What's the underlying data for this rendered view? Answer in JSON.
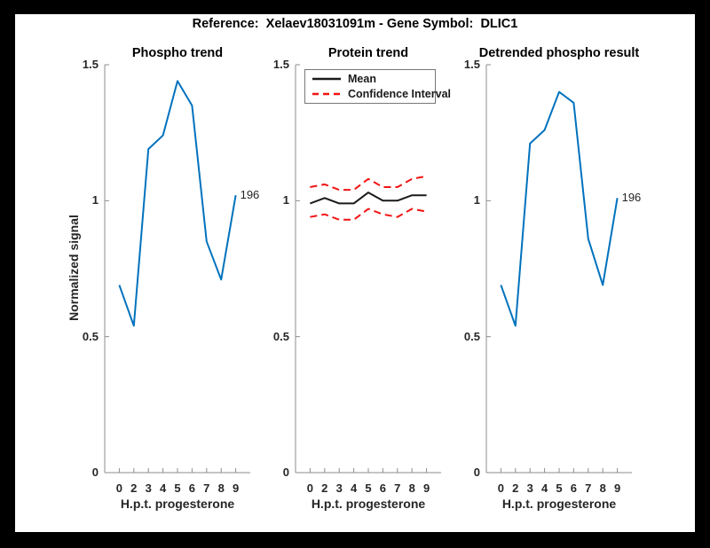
{
  "window": {
    "background": "#000000",
    "canvas": "#ffffff"
  },
  "header": {
    "title": "Reference:  Xelaev18031091m - Gene Symbol:  DLIC1"
  },
  "colors": {
    "blue": "#0072BD",
    "red": "#F21414",
    "black": "#1A1A1A",
    "axis_line": "#8C8C8C",
    "tick_text": "#262626"
  },
  "axes": {
    "xticklabels": [
      "0",
      "2",
      "3",
      "4",
      "5",
      "6",
      "7",
      "8",
      "9"
    ],
    "yticks": [
      0,
      0.5,
      1,
      1.5
    ],
    "yticklabels": [
      "0",
      "0.5",
      "1",
      "1.5"
    ],
    "ylim": [
      0,
      1.5
    ],
    "xlabel": "H.p.t. progesterone",
    "ylabel": "Normalized signal"
  },
  "chart_data": [
    {
      "type": "line",
      "title": "Phospho trend",
      "categories": [
        "0",
        "2",
        "3",
        "4",
        "5",
        "6",
        "7",
        "8",
        "9"
      ],
      "xlabel": "H.p.t. progesterone",
      "ylabel": "Normalized signal",
      "ylim": [
        0,
        1.5
      ],
      "grid": false,
      "series": [
        {
          "name": "phospho-signal",
          "color": "blue",
          "dash": false,
          "values": [
            0.69,
            0.54,
            1.19,
            1.24,
            1.44,
            1.35,
            0.85,
            0.71,
            1.02
          ],
          "end_label": "196"
        }
      ]
    },
    {
      "type": "line",
      "title": "Protein trend",
      "categories": [
        "0",
        "2",
        "3",
        "4",
        "5",
        "6",
        "7",
        "8",
        "9"
      ],
      "xlabel": "H.p.t. progesterone",
      "ylabel": "",
      "ylim": [
        0,
        1.5
      ],
      "grid": false,
      "legend": {
        "position": "northwest",
        "entries": [
          {
            "label": "Mean",
            "style": "solid",
            "color": "black"
          },
          {
            "label": "Confidence Interval",
            "style": "dashed",
            "color": "red"
          }
        ]
      },
      "series": [
        {
          "name": "mean",
          "color": "black",
          "dash": false,
          "values": [
            0.99,
            1.01,
            0.99,
            0.99,
            1.03,
            1.0,
            1.0,
            1.02,
            1.02
          ]
        },
        {
          "name": "confidence-upper",
          "color": "red",
          "dash": true,
          "values": [
            1.05,
            1.06,
            1.04,
            1.04,
            1.08,
            1.05,
            1.05,
            1.08,
            1.09
          ]
        },
        {
          "name": "confidence-lower",
          "color": "red",
          "dash": true,
          "values": [
            0.94,
            0.95,
            0.93,
            0.93,
            0.97,
            0.95,
            0.94,
            0.97,
            0.96
          ]
        }
      ]
    },
    {
      "type": "line",
      "title": "Detrended phospho result",
      "categories": [
        "0",
        "2",
        "3",
        "4",
        "5",
        "6",
        "7",
        "8",
        "9"
      ],
      "xlabel": "H.p.t. progesterone",
      "ylabel": "",
      "ylim": [
        0,
        1.5
      ],
      "grid": false,
      "series": [
        {
          "name": "detrended-phospho-signal",
          "color": "blue",
          "dash": false,
          "values": [
            0.69,
            0.54,
            1.21,
            1.26,
            1.4,
            1.36,
            0.86,
            0.69,
            1.01
          ],
          "end_label": "196"
        }
      ]
    }
  ]
}
